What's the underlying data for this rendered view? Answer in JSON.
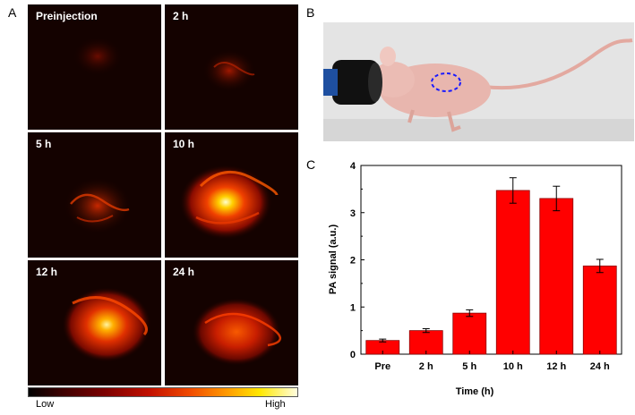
{
  "panels": {
    "a": "A",
    "b": "B",
    "c": "C"
  },
  "images": [
    {
      "label": "Preinjection",
      "intensity": 0.08
    },
    {
      "label": "2 h",
      "intensity": 0.18
    },
    {
      "label": "5 h",
      "intensity": 0.35
    },
    {
      "label": "10 h",
      "intensity": 0.95
    },
    {
      "label": "12 h",
      "intensity": 0.85
    },
    {
      "label": "24 h",
      "intensity": 0.55
    }
  ],
  "colorbar": {
    "low": "Low",
    "high": "High"
  },
  "colors": {
    "bar": "#ff0000",
    "bar_edge": "#8a0000",
    "ellipse": "#1a1aff"
  },
  "chart_data": {
    "type": "bar",
    "categories": [
      "Pre",
      "2 h",
      "5 h",
      "10 h",
      "12 h",
      "24 h"
    ],
    "values": [
      0.29,
      0.5,
      0.87,
      3.47,
      3.3,
      1.87
    ],
    "errors": [
      0.03,
      0.04,
      0.07,
      0.27,
      0.26,
      0.14
    ],
    "xlabel": "Time (h)",
    "ylabel": "PA signal (a.u.)",
    "ylim": [
      0,
      4
    ],
    "yticks": [
      "0",
      "1",
      "2",
      "3",
      "4"
    ],
    "grid": false
  }
}
